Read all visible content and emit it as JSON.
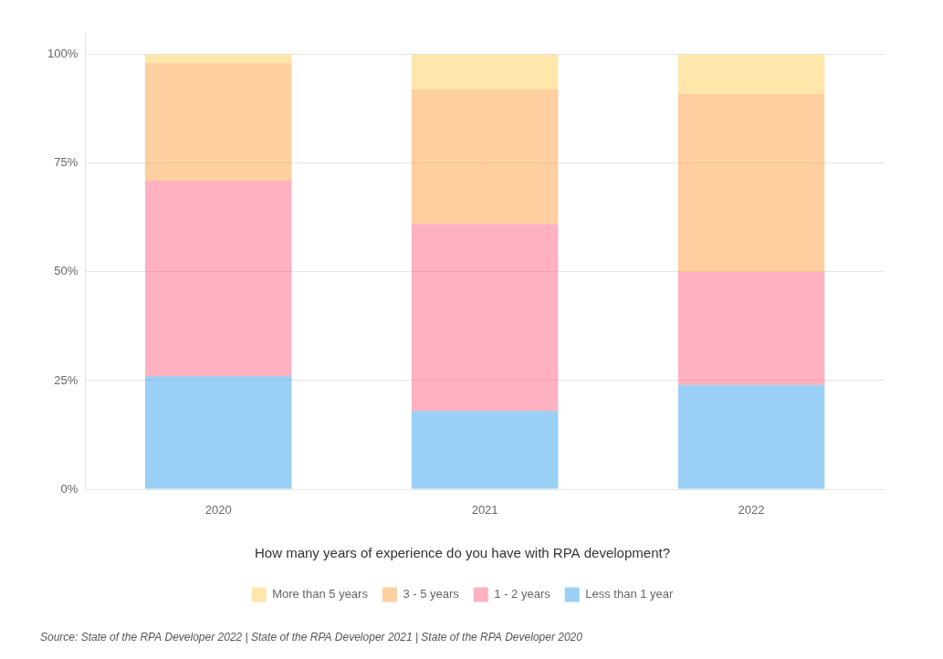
{
  "chart_data": {
    "type": "bar",
    "stacked": true,
    "title": "How many years of experience do you have with RPA development?",
    "categories": [
      "2020",
      "2021",
      "2022"
    ],
    "series": [
      {
        "name": "Less than 1 year",
        "values": [
          26,
          18,
          24
        ]
      },
      {
        "name": "1 - 2 years",
        "values": [
          45,
          43,
          26
        ]
      },
      {
        "name": "3 - 5 years",
        "values": [
          27,
          31,
          41
        ]
      },
      {
        "name": "More than 5 years",
        "values": [
          2,
          8,
          9
        ]
      }
    ],
    "ylim": [
      0,
      105
    ],
    "yticks": [
      {
        "value": 0,
        "label": "0%"
      },
      {
        "value": 25,
        "label": "25%"
      },
      {
        "value": 50,
        "label": "50%"
      },
      {
        "value": 75,
        "label": "75%"
      },
      {
        "value": 100,
        "label": "100%"
      }
    ],
    "grid": true,
    "legend": "bottom",
    "annotations": [
      "Source: State of the RPA Developer 2022 | State of the RPA Developer 2021 | State of the RPA Developer 2020"
    ]
  }
}
